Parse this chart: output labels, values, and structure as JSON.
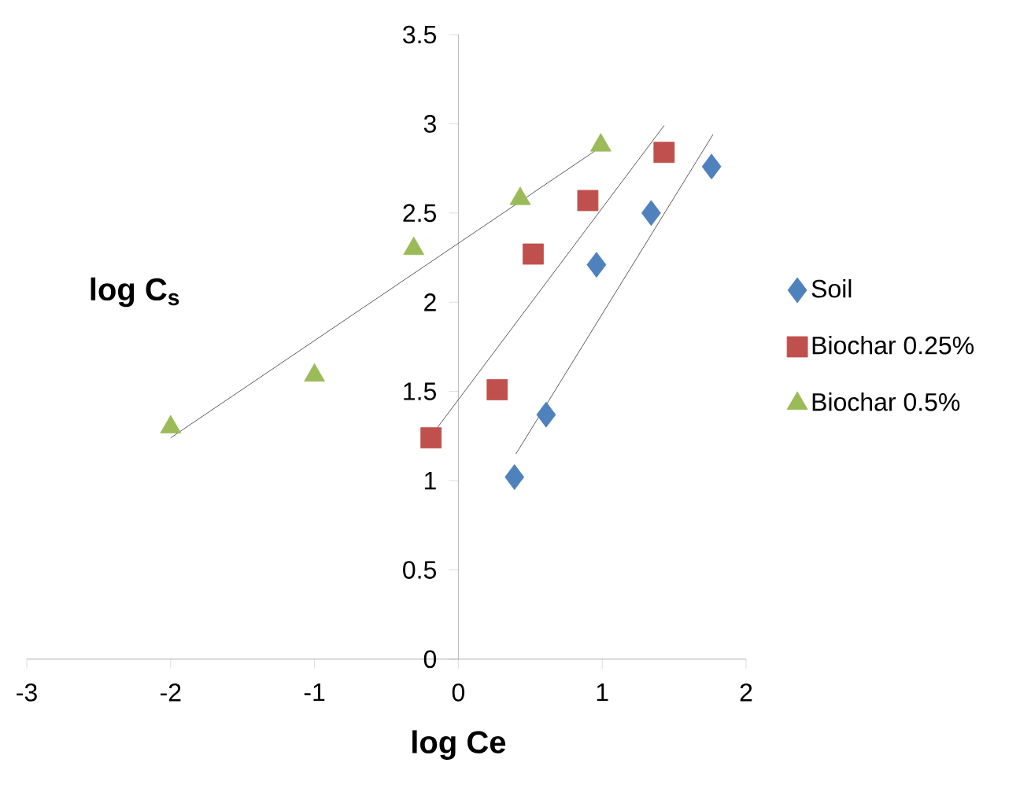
{
  "chart_data": {
    "type": "scatter",
    "xlabel": "log Ce",
    "ylabel": "log C$_{s}$",
    "xlim": [
      -3,
      2
    ],
    "xticks": [
      -3,
      -2,
      -1,
      0,
      1,
      2
    ],
    "ylim": [
      0,
      3.5
    ],
    "yticks": [
      0,
      0.5,
      1,
      1.5,
      2,
      2.5,
      3,
      3.5
    ],
    "grid": false,
    "legend": "right",
    "series": [
      {
        "name": "Soil",
        "color": "#4f81bd",
        "marker": "diamond",
        "x": [
          0.39,
          0.61,
          0.96,
          1.34,
          1.76
        ],
        "values": [
          1.02,
          1.37,
          2.21,
          2.5,
          2.76
        ]
      },
      {
        "name": "Biochar 0.25%",
        "color": "#c0504d",
        "marker": "square",
        "x": [
          -0.19,
          0.27,
          0.52,
          0.9,
          1.43
        ],
        "values": [
          1.24,
          1.51,
          2.27,
          2.57,
          2.84
        ]
      },
      {
        "name": "Biochar 0.5%",
        "color": "#9bbb59",
        "marker": "triangle",
        "x": [
          -2,
          -1,
          -0.31,
          0.43,
          0.99
        ],
        "values": [
          1.3,
          1.59,
          2.3,
          2.58,
          2.88
        ]
      },
      {
        "type": "line",
        "color": "#333333",
        "marker": "none",
        "x": [
          0.4,
          1.77
        ],
        "values": [
          1.15,
          2.94
        ]
      },
      {
        "type": "line",
        "color": "#333333",
        "marker": "none",
        "x": [
          -0.19,
          1.43
        ],
        "values": [
          1.25,
          2.99
        ]
      },
      {
        "type": "line",
        "color": "#333333",
        "marker": "none",
        "x": [
          -2,
          0.99
        ],
        "values": [
          1.24,
          2.87
        ]
      }
    ]
  }
}
